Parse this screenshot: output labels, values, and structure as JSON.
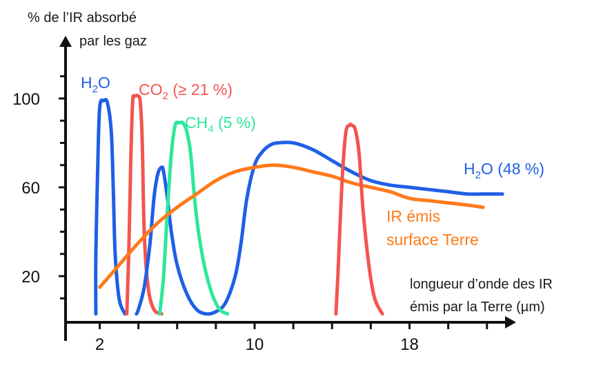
{
  "chart_data": {
    "type": "line",
    "ylabel_line1": "% de l’IR absorbé",
    "ylabel_line2": "par les gaz",
    "xlabel_line1": "longueur d’onde des IR",
    "xlabel_line2": "émis par la Terre (µm)",
    "xticks": [
      2,
      10,
      18
    ],
    "yticks": [
      20,
      60,
      100
    ],
    "xlim": [
      0,
      24.5
    ],
    "ylim": [
      0,
      118
    ],
    "series": [
      {
        "key": "h2o_a",
        "name": "H2O",
        "color": "#1f5fe6",
        "x": [
          1.8,
          1.8,
          1.9,
          2.0,
          2.2,
          2.4,
          2.6,
          2.7,
          2.8,
          3.0,
          3.3
        ],
        "y": [
          3,
          30,
          70,
          96,
          99,
          98,
          85,
          60,
          30,
          10,
          3
        ]
      },
      {
        "key": "co2",
        "name": "CO2 (≥ 21 %)",
        "color": "#f2554f",
        "x": [
          3.4,
          3.5,
          3.6,
          3.7,
          3.8,
          4.0,
          4.1,
          4.2,
          4.3,
          4.5,
          4.8,
          5.2
        ],
        "y": [
          3,
          30,
          70,
          98,
          101,
          101,
          98,
          80,
          40,
          15,
          5,
          3
        ]
      },
      {
        "key": "h2o_b",
        "name": "",
        "color": "#1f5fe6",
        "x": [
          3.9,
          4.0,
          4.3,
          4.6,
          4.8,
          5.0,
          5.2,
          5.3,
          5.5,
          5.7,
          6.0,
          6.5,
          7.0,
          7.5,
          8.0,
          8.5,
          9.0,
          9.3,
          9.6,
          10.0,
          10.4,
          10.8,
          11.2,
          12.0,
          13.0,
          14.0,
          15.0,
          16.0,
          17.0,
          18.0,
          19.0,
          20.0,
          21.0,
          22.0,
          22.8
        ],
        "y": [
          3,
          5,
          15,
          35,
          55,
          66,
          69,
          67,
          55,
          40,
          25,
          12,
          5,
          3,
          4,
          8,
          20,
          35,
          55,
          70,
          76,
          79,
          80,
          80,
          77,
          72,
          67,
          63,
          61,
          60,
          59,
          58,
          57,
          57,
          57
        ]
      },
      {
        "key": "ch4",
        "name": "CH4 (5 %)",
        "color": "#2ee89a",
        "x": [
          5.1,
          5.3,
          5.5,
          5.7,
          5.9,
          6.1,
          6.3,
          6.5,
          6.7,
          6.9,
          7.1,
          7.4,
          7.8,
          8.2,
          8.6
        ],
        "y": [
          3,
          20,
          50,
          75,
          88,
          89,
          89,
          85,
          75,
          55,
          40,
          25,
          12,
          5,
          3
        ]
      },
      {
        "key": "h2o_c",
        "name": "H2O (48 %)",
        "color": "#1f5fe6",
        "x": [],
        "y": []
      },
      {
        "key": "ir_emis",
        "name": "IR émis\nsurface Terre",
        "color": "#ff7a1a",
        "x": [
          2.0,
          3.0,
          4.0,
          5.0,
          6.0,
          7.0,
          8.0,
          9.0,
          10.0,
          11.0,
          12.0,
          13.0,
          14.0,
          15.0,
          16.0,
          17.0,
          18.0,
          19.0,
          20.0,
          21.0,
          21.8
        ],
        "y": [
          15,
          25,
          35,
          44,
          51,
          57,
          63,
          67,
          69,
          70,
          69,
          67,
          65,
          62,
          60,
          58,
          55,
          54,
          53,
          52,
          51
        ]
      },
      {
        "key": "co2_15",
        "name": "",
        "color": "#f2554f",
        "x": [
          14.2,
          14.3,
          14.5,
          14.7,
          14.9,
          15.0,
          15.2,
          15.4,
          15.6,
          15.9,
          16.2,
          16.6
        ],
        "y": [
          3,
          20,
          60,
          84,
          88,
          88,
          86,
          75,
          50,
          25,
          10,
          3
        ]
      }
    ]
  },
  "labels": {
    "h2o_a": {
      "main": "H",
      "sub": "2",
      "rest": "O"
    },
    "co2": {
      "main": "CO",
      "sub": "2",
      "rest": " (≥ 21 %)"
    },
    "ch4": {
      "main": "CH",
      "sub": "4",
      "rest": " (5 %)"
    },
    "h2o_c": {
      "main": "H",
      "sub": "2",
      "rest": "O (48 %)"
    },
    "ir_emis": {
      "line1": "IR émis",
      "line2": "surface Terre"
    }
  }
}
